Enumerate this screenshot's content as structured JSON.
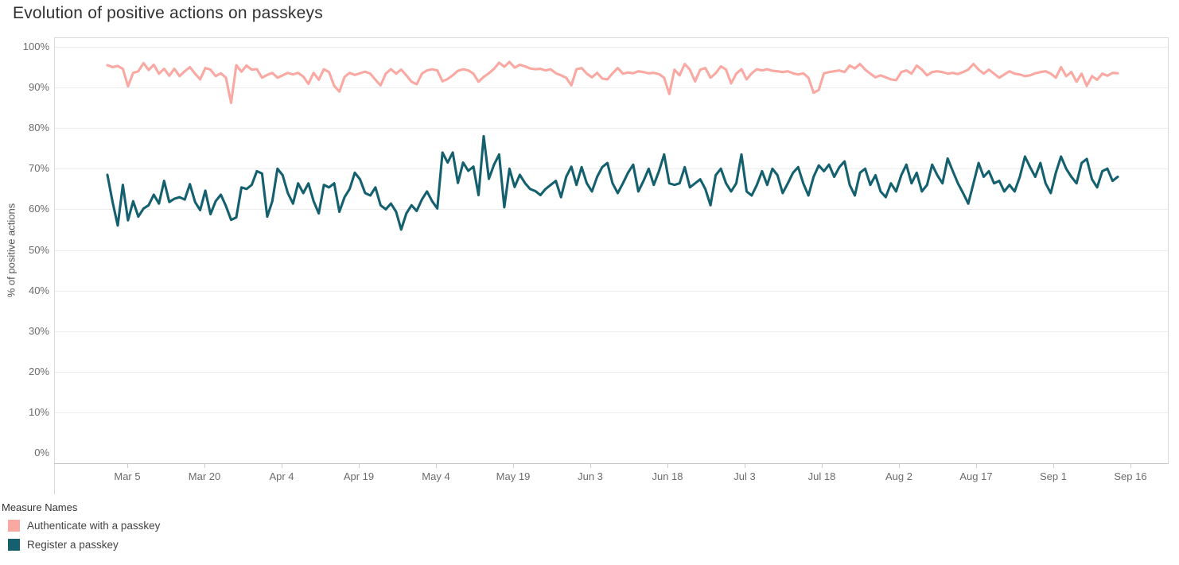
{
  "title": "Evolution of positive actions on passkeys",
  "y_axis": {
    "title": "% of positive actions",
    "tick_labels": [
      "0%",
      "10%",
      "20%",
      "30%",
      "40%",
      "50%",
      "60%",
      "70%",
      "80%",
      "90%",
      "100%"
    ],
    "tick_values": [
      0,
      10,
      20,
      30,
      40,
      50,
      60,
      70,
      80,
      90,
      100
    ]
  },
  "x_axis": {
    "tick_labels": [
      "Mar 5",
      "Mar 20",
      "Apr 4",
      "Apr 19",
      "May 4",
      "May 19",
      "Jun 3",
      "Jun 18",
      "Jul 3",
      "Jul 18",
      "Aug 2",
      "Aug 17",
      "Sep 1",
      "Sep 16"
    ]
  },
  "legend": {
    "title": "Measure Names",
    "items": [
      {
        "label": "Authenticate with a passkey",
        "color": "#F9A8A2"
      },
      {
        "label": "Register a passkey",
        "color": "#15606F"
      }
    ]
  },
  "colors": {
    "title_text": "#323232",
    "tick_text": "#6b6b6b",
    "gridline": "#ececec",
    "pane_border": "#d9d9d9",
    "axis_line": "#c3c3c3",
    "authenticate_line": "#F9A8A2",
    "register_line": "#15606F"
  },
  "chart_data": {
    "type": "line",
    "title": "Evolution of positive actions on passkeys",
    "xlabel": "",
    "ylabel": "% of positive actions",
    "ylim": [
      0,
      100
    ],
    "grid": "horizontal",
    "legend_position": "bottom-left",
    "x_interval": "daily",
    "x_start": "Mar 1",
    "x_end": "Sep 13",
    "x_tick_labels": [
      "Mar 5",
      "Mar 20",
      "Apr 4",
      "Apr 19",
      "May 4",
      "May 19",
      "Jun 3",
      "Jun 18",
      "Jul 3",
      "Jul 18",
      "Aug 2",
      "Aug 17",
      "Sep 1",
      "Sep 16"
    ],
    "series": [
      {
        "name": "Authenticate with a passkey",
        "color": "#F9A8A2",
        "approx_range": "86-96%",
        "values": [
          95.5,
          95.0,
          95.3,
          94.6,
          90.3,
          93.6,
          94.0,
          96.0,
          94.3,
          95.6,
          93.4,
          94.6,
          92.9,
          94.6,
          92.8,
          94.0,
          95.0,
          93.4,
          92.0,
          94.8,
          94.4,
          92.8,
          93.5,
          92.4,
          86.2,
          95.5,
          93.9,
          95.4,
          94.4,
          94.5,
          92.4,
          93.1,
          93.6,
          92.4,
          93.0,
          93.6,
          93.2,
          93.6,
          92.7,
          90.9,
          93.6,
          91.9,
          94.5,
          93.8,
          90.4,
          89.0,
          92.6,
          93.6,
          93.1,
          93.5,
          93.9,
          93.4,
          91.9,
          90.5,
          93.4,
          94.5,
          93.4,
          94.4,
          93.0,
          91.4,
          90.8,
          93.4,
          94.2,
          94.5,
          94.2,
          91.5,
          92.1,
          93.0,
          94.1,
          94.5,
          94.2,
          93.4,
          91.4,
          92.6,
          93.5,
          94.6,
          96.1,
          95.1,
          96.3,
          94.9,
          95.6,
          95.2,
          94.7,
          94.5,
          94.6,
          94.2,
          94.5,
          93.5,
          93.0,
          92.4,
          90.5,
          94.5,
          94.8,
          93.4,
          92.5,
          93.6,
          92.2,
          92.0,
          93.5,
          94.8,
          93.4,
          93.7,
          93.5,
          94.0,
          93.8,
          93.5,
          93.6,
          93.3,
          92.4,
          88.4,
          94.4,
          93.0,
          95.8,
          94.4,
          91.5,
          94.4,
          94.8,
          92.4,
          93.5,
          95.2,
          94.4,
          91.0,
          93.4,
          94.5,
          92.0,
          93.5,
          94.5,
          94.2,
          94.5,
          94.1,
          94.0,
          93.8,
          94.0,
          93.5,
          93.2,
          93.5,
          92.4,
          88.7,
          89.4,
          93.5,
          93.8,
          94.0,
          94.2,
          93.8,
          95.4,
          94.7,
          95.8,
          94.4,
          93.4,
          92.5,
          93.0,
          92.5,
          92.0,
          91.8,
          93.8,
          94.2,
          93.4,
          95.4,
          94.4,
          93.0,
          93.8,
          94.0,
          93.8,
          93.4,
          93.6,
          93.3,
          93.8,
          94.4,
          95.8,
          94.4,
          93.4,
          94.4,
          93.4,
          92.4,
          93.2,
          94.0,
          93.4,
          93.2,
          92.8,
          93.0,
          93.5,
          93.8,
          94.0,
          93.4,
          92.4,
          95.0,
          92.8,
          93.8,
          91.4,
          93.4,
          90.4,
          92.8,
          91.9,
          93.4,
          92.9,
          93.6,
          93.5
        ]
      },
      {
        "name": "Register a passkey",
        "color": "#15606F",
        "approx_range": "55-78%",
        "values": [
          68.5,
          61.8,
          56.0,
          66.0,
          57.3,
          62.0,
          58.2,
          60.2,
          61.0,
          63.6,
          61.4,
          67.0,
          61.8,
          62.6,
          63.0,
          62.4,
          66.2,
          61.8,
          59.8,
          64.6,
          58.8,
          62.0,
          63.6,
          60.8,
          57.4,
          58.0,
          65.4,
          65.0,
          66.0,
          69.4,
          68.8,
          58.2,
          62.0,
          70.0,
          68.4,
          64.0,
          61.4,
          66.4,
          64.0,
          66.4,
          62.0,
          59.0,
          66.0,
          65.4,
          66.4,
          59.4,
          63.0,
          65.0,
          69.0,
          67.4,
          64.0,
          63.4,
          65.4,
          61.0,
          60.0,
          61.4,
          59.4,
          55.0,
          59.0,
          61.0,
          59.6,
          62.4,
          64.4,
          62.0,
          60.2,
          74.0,
          71.5,
          74.0,
          66.5,
          71.5,
          69.5,
          70.5,
          63.5,
          78.0,
          67.5,
          71.0,
          73.5,
          60.5,
          70.0,
          65.5,
          68.5,
          66.5,
          65.0,
          64.5,
          63.5,
          65.0,
          66.0,
          67.0,
          63.0,
          68.0,
          70.5,
          66.0,
          70.4,
          66.4,
          64.4,
          68.0,
          70.4,
          71.4,
          66.4,
          64.0,
          66.4,
          69.0,
          71.0,
          64.4,
          67.0,
          70.0,
          66.0,
          69.4,
          73.5,
          66.4,
          66.0,
          66.4,
          70.4,
          65.4,
          66.4,
          67.4,
          65.0,
          61.0,
          68.4,
          70.0,
          66.4,
          64.4,
          66.4,
          73.5,
          64.4,
          63.4,
          66.0,
          69.4,
          66.0,
          70.0,
          68.4,
          64.0,
          66.4,
          69.0,
          70.4,
          66.4,
          63.4,
          68.0,
          70.8,
          69.4,
          71.0,
          68.0,
          70.4,
          71.8,
          66.0,
          63.4,
          69.0,
          70.0,
          66.0,
          68.4,
          64.4,
          63.0,
          66.4,
          64.4,
          68.4,
          71.0,
          66.4,
          69.0,
          64.4,
          66.0,
          71.0,
          68.4,
          66.4,
          72.5,
          69.4,
          66.4,
          64.0,
          61.4,
          66.4,
          71.4,
          68.0,
          69.4,
          66.4,
          67.0,
          64.4,
          66.0,
          64.4,
          68.0,
          73.0,
          70.4,
          68.0,
          71.4,
          66.4,
          64.0,
          69.0,
          73.0,
          70.0,
          68.0,
          66.4,
          71.4,
          72.4,
          67.4,
          65.4,
          69.4,
          70.0,
          67.0,
          68.0
        ]
      }
    ]
  }
}
